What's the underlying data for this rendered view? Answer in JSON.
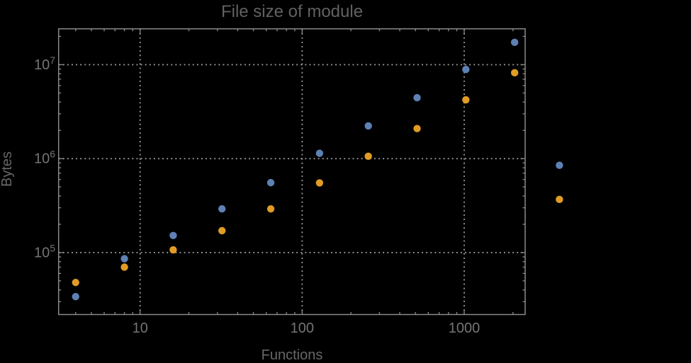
{
  "chart_data": {
    "type": "scatter",
    "title": "File size of module",
    "xlabel": "Functions",
    "ylabel": "Bytes",
    "x_scale": "log",
    "y_scale": "log",
    "grid": "dotted",
    "legend_position": "none",
    "xlim": [
      3.14,
      2378
    ],
    "ylim": [
      21900,
      24100000
    ],
    "x_ticks": [
      10,
      100,
      1000
    ],
    "y_tick_exponents": [
      5,
      6,
      7
    ],
    "series": [
      {
        "name": "series-1-blue",
        "color": "#5e81b5",
        "x": [
          4,
          8,
          16,
          32,
          64,
          128,
          256,
          512,
          1024,
          2048,
          3870
        ],
        "y": [
          34000,
          86000,
          152000,
          292000,
          555000,
          1140000,
          2230000,
          4450000,
          8900000,
          17300000,
          850000
        ]
      },
      {
        "name": "series-2-orange",
        "color": "#e09c24",
        "x": [
          4,
          8,
          16,
          32,
          64,
          128,
          256,
          512,
          1024,
          2048,
          3870
        ],
        "y": [
          48000,
          70000,
          107000,
          171000,
          292000,
          552000,
          1060000,
          2090000,
          4230000,
          8200000,
          368000
        ]
      }
    ],
    "colors": {
      "background": "#000000",
      "frame": "#8a8a8a",
      "grid": "#9a9a9a",
      "title_text": "#616161",
      "axis_text": "#676767",
      "tick_text": "#747474"
    }
  }
}
